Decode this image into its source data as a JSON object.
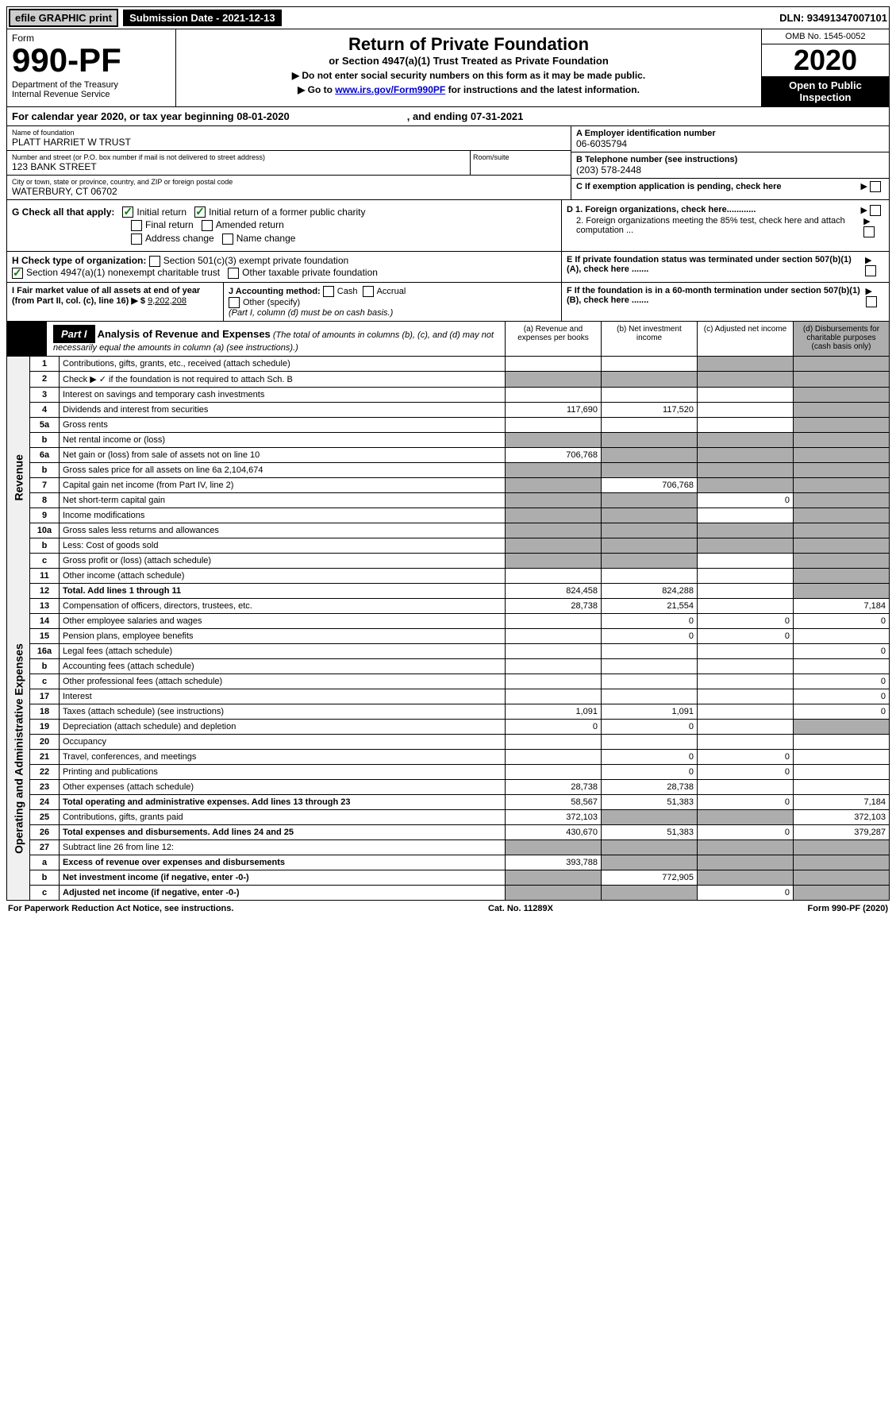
{
  "topbar": {
    "efile": "efile GRAPHIC print",
    "subdate_label": "Submission Date - 2021-12-13",
    "dln": "DLN: 93491347007101"
  },
  "header": {
    "form_word": "Form",
    "form_no": "990-PF",
    "dept": "Department of the Treasury\nInternal Revenue Service",
    "title": "Return of Private Foundation",
    "subtitle": "or Section 4947(a)(1) Trust Treated as Private Foundation",
    "inst1": "▶ Do not enter social security numbers on this form as it may be made public.",
    "inst2_prefix": "▶ Go to ",
    "inst2_link": "www.irs.gov/Form990PF",
    "inst2_suffix": " for instructions and the latest information.",
    "omb": "OMB No. 1545-0052",
    "year": "2020",
    "open": "Open to Public Inspection"
  },
  "cal": {
    "text": "For calendar year 2020, or tax year beginning 08-01-2020",
    "ending": ", and ending 07-31-2021"
  },
  "entity": {
    "name_label": "Name of foundation",
    "name": "PLATT HARRIET W TRUST",
    "addr_label": "Number and street (or P.O. box number if mail is not delivered to street address)",
    "addr": "123 BANK STREET",
    "room_label": "Room/suite",
    "city_label": "City or town, state or province, country, and ZIP or foreign postal code",
    "city": "WATERBURY, CT  06702",
    "a_label": "A Employer identification number",
    "a": "06-6035794",
    "b_label": "B Telephone number (see instructions)",
    "b": "(203) 578-2448",
    "c_label": "C If exemption application is pending, check here"
  },
  "boxG": {
    "label": "G Check all that apply:",
    "initial": "Initial return",
    "initial_former": "Initial return of a former public charity",
    "final": "Final return",
    "amended": "Amended return",
    "addr": "Address change",
    "name": "Name change"
  },
  "boxD": {
    "d1": "D 1. Foreign organizations, check here............",
    "d2": "2. Foreign organizations meeting the 85% test, check here and attach computation ...",
    "e": "E  If private foundation status was terminated under section 507(b)(1)(A), check here .......",
    "f": "F  If the foundation is in a 60-month termination under section 507(b)(1)(B), check here ......."
  },
  "boxH": {
    "label": "H Check type of organization:",
    "opt1": "Section 501(c)(3) exempt private foundation",
    "opt2": "Section 4947(a)(1) nonexempt charitable trust",
    "opt3": "Other taxable private foundation"
  },
  "boxI": {
    "label": "I Fair market value of all assets at end of year (from Part II, col. (c), line 16) ▶ $",
    "value": "9,202,208",
    "j_label": "J Accounting method:",
    "cash": "Cash",
    "accrual": "Accrual",
    "other": "Other (specify)",
    "note": "(Part I, column (d) must be on cash basis.)"
  },
  "part1": {
    "label": "Part I",
    "title": "Analysis of Revenue and Expenses",
    "note": "(The total of amounts in columns (b), (c), and (d) may not necessarily equal the amounts in column (a) (see instructions).)",
    "col_a": "(a) Revenue and expenses per books",
    "col_b": "(b) Net investment income",
    "col_c": "(c) Adjusted net income",
    "col_d": "(d) Disbursements for charitable purposes (cash basis only)"
  },
  "sidebar": {
    "revenue": "Revenue",
    "expenses": "Operating and Administrative Expenses"
  },
  "rows": [
    {
      "n": "1",
      "d": "Contributions, gifts, grants, etc., received (attach schedule)",
      "a": "",
      "b": "",
      "c": "s",
      "dd": "s"
    },
    {
      "n": "2",
      "d": "Check ▶ ✓ if the foundation is not required to attach Sch. B",
      "a": "s",
      "b": "s",
      "c": "s",
      "dd": "s",
      "note": "not"
    },
    {
      "n": "3",
      "d": "Interest on savings and temporary cash investments",
      "a": "",
      "b": "",
      "c": "",
      "dd": "s"
    },
    {
      "n": "4",
      "d": "Dividends and interest from securities",
      "a": "117,690",
      "b": "117,520",
      "c": "",
      "dd": "s"
    },
    {
      "n": "5a",
      "d": "Gross rents",
      "a": "",
      "b": "",
      "c": "",
      "dd": "s"
    },
    {
      "n": "b",
      "d": "Net rental income or (loss)",
      "a": "s",
      "b": "s",
      "c": "s",
      "dd": "s"
    },
    {
      "n": "6a",
      "d": "Net gain or (loss) from sale of assets not on line 10",
      "a": "706,768",
      "b": "s",
      "c": "s",
      "dd": "s"
    },
    {
      "n": "b",
      "d": "Gross sales price for all assets on line 6a            2,104,674",
      "a": "s",
      "b": "s",
      "c": "s",
      "dd": "s"
    },
    {
      "n": "7",
      "d": "Capital gain net income (from Part IV, line 2)",
      "a": "s",
      "b": "706,768",
      "c": "s",
      "dd": "s"
    },
    {
      "n": "8",
      "d": "Net short-term capital gain",
      "a": "s",
      "b": "s",
      "c": "0",
      "dd": "s"
    },
    {
      "n": "9",
      "d": "Income modifications",
      "a": "s",
      "b": "s",
      "c": "",
      "dd": "s"
    },
    {
      "n": "10a",
      "d": "Gross sales less returns and allowances",
      "a": "s",
      "b": "s",
      "c": "s",
      "dd": "s"
    },
    {
      "n": "b",
      "d": "Less: Cost of goods sold",
      "a": "s",
      "b": "s",
      "c": "s",
      "dd": "s"
    },
    {
      "n": "c",
      "d": "Gross profit or (loss) (attach schedule)",
      "a": "s",
      "b": "s",
      "c": "",
      "dd": "s"
    },
    {
      "n": "11",
      "d": "Other income (attach schedule)",
      "a": "",
      "b": "",
      "c": "",
      "dd": "s"
    },
    {
      "n": "12",
      "d": "Total. Add lines 1 through 11",
      "a": "824,458",
      "b": "824,288",
      "c": "",
      "dd": "s",
      "bold": true
    }
  ],
  "erows": [
    {
      "n": "13",
      "d": "Compensation of officers, directors, trustees, etc.",
      "a": "28,738",
      "b": "21,554",
      "c": "",
      "dd": "7,184"
    },
    {
      "n": "14",
      "d": "Other employee salaries and wages",
      "a": "",
      "b": "0",
      "c": "0",
      "dd": "0"
    },
    {
      "n": "15",
      "d": "Pension plans, employee benefits",
      "a": "",
      "b": "0",
      "c": "0",
      "dd": ""
    },
    {
      "n": "16a",
      "d": "Legal fees (attach schedule)",
      "a": "",
      "b": "",
      "c": "",
      "dd": "0"
    },
    {
      "n": "b",
      "d": "Accounting fees (attach schedule)",
      "a": "",
      "b": "",
      "c": "",
      "dd": ""
    },
    {
      "n": "c",
      "d": "Other professional fees (attach schedule)",
      "a": "",
      "b": "",
      "c": "",
      "dd": "0"
    },
    {
      "n": "17",
      "d": "Interest",
      "a": "",
      "b": "",
      "c": "",
      "dd": "0"
    },
    {
      "n": "18",
      "d": "Taxes (attach schedule) (see instructions)",
      "a": "1,091",
      "b": "1,091",
      "c": "",
      "dd": "0"
    },
    {
      "n": "19",
      "d": "Depreciation (attach schedule) and depletion",
      "a": "0",
      "b": "0",
      "c": "",
      "dd": "s"
    },
    {
      "n": "20",
      "d": "Occupancy",
      "a": "",
      "b": "",
      "c": "",
      "dd": ""
    },
    {
      "n": "21",
      "d": "Travel, conferences, and meetings",
      "a": "",
      "b": "0",
      "c": "0",
      "dd": ""
    },
    {
      "n": "22",
      "d": "Printing and publications",
      "a": "",
      "b": "0",
      "c": "0",
      "dd": ""
    },
    {
      "n": "23",
      "d": "Other expenses (attach schedule)",
      "a": "28,738",
      "b": "28,738",
      "c": "",
      "dd": ""
    },
    {
      "n": "24",
      "d": "Total operating and administrative expenses. Add lines 13 through 23",
      "a": "58,567",
      "b": "51,383",
      "c": "0",
      "dd": "7,184",
      "bold": true
    },
    {
      "n": "25",
      "d": "Contributions, gifts, grants paid",
      "a": "372,103",
      "b": "s",
      "c": "s",
      "dd": "372,103"
    },
    {
      "n": "26",
      "d": "Total expenses and disbursements. Add lines 24 and 25",
      "a": "430,670",
      "b": "51,383",
      "c": "0",
      "dd": "379,287",
      "bold": true
    }
  ],
  "srows": [
    {
      "n": "27",
      "d": "Subtract line 26 from line 12:",
      "a": "s",
      "b": "s",
      "c": "s",
      "dd": "s"
    },
    {
      "n": "a",
      "d": "Excess of revenue over expenses and disbursements",
      "a": "393,788",
      "b": "s",
      "c": "s",
      "dd": "s",
      "bold": true
    },
    {
      "n": "b",
      "d": "Net investment income (if negative, enter -0-)",
      "a": "s",
      "b": "772,905",
      "c": "s",
      "dd": "s",
      "bold": true
    },
    {
      "n": "c",
      "d": "Adjusted net income (if negative, enter -0-)",
      "a": "s",
      "b": "s",
      "c": "0",
      "dd": "s",
      "bold": true
    }
  ],
  "footer": {
    "left": "For Paperwork Reduction Act Notice, see instructions.",
    "center": "Cat. No. 11289X",
    "right": "Form 990-PF (2020)"
  }
}
